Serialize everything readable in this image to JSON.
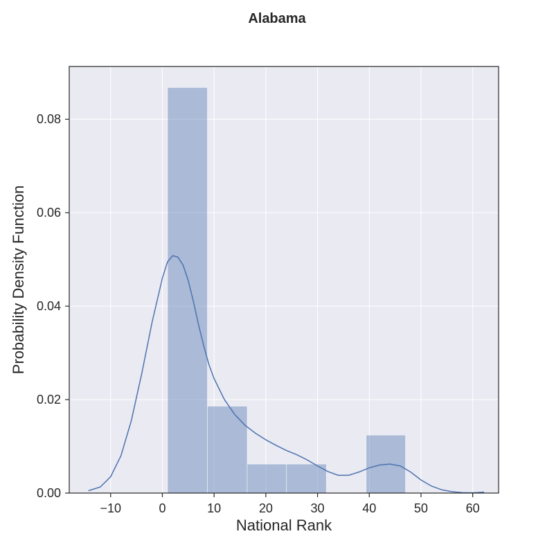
{
  "chart_data": {
    "type": "bar",
    "title": "Alabama",
    "xlabel": "National Rank",
    "ylabel": "Probability Density Function",
    "xlim": [
      -18,
      65
    ],
    "ylim": [
      0,
      0.0913
    ],
    "xticks": [
      -10,
      0,
      10,
      20,
      30,
      40,
      50,
      60
    ],
    "xtick_labels": [
      "−10",
      "0",
      "10",
      "20",
      "30",
      "40",
      "50",
      "60"
    ],
    "yticks": [
      0,
      0.02,
      0.04,
      0.06,
      0.08
    ],
    "ytick_labels": [
      "0.00",
      "0.02",
      "0.04",
      "0.06",
      "0.08"
    ],
    "grid": true,
    "histogram": {
      "bins": [
        {
          "x0": 1.0,
          "x1": 8.7,
          "density": 0.0868
        },
        {
          "x0": 8.7,
          "x1": 16.4,
          "density": 0.0186
        },
        {
          "x0": 16.4,
          "x1": 24.0,
          "density": 0.0062
        },
        {
          "x0": 24.0,
          "x1": 31.7,
          "density": 0.0062
        },
        {
          "x0": 31.7,
          "x1": 39.4,
          "density": 0.0
        },
        {
          "x0": 39.4,
          "x1": 47.0,
          "density": 0.0124
        }
      ],
      "color": "#4c72b0"
    },
    "kde": {
      "color": "#4c72b0",
      "x": [
        -14.3,
        -12,
        -10,
        -8,
        -6,
        -4,
        -2,
        0,
        1,
        2,
        3,
        4,
        5,
        6,
        7,
        8,
        9,
        10,
        12,
        14,
        16,
        18,
        20,
        22,
        24,
        26,
        28,
        30,
        32,
        34,
        36,
        38,
        40,
        42,
        44,
        46,
        48,
        50,
        52,
        54,
        56,
        58,
        60,
        62.2
      ],
      "y": [
        0.0005,
        0.0013,
        0.0035,
        0.008,
        0.0155,
        0.0255,
        0.0365,
        0.046,
        0.0495,
        0.0508,
        0.0505,
        0.0488,
        0.0455,
        0.041,
        0.036,
        0.0315,
        0.0275,
        0.0245,
        0.02,
        0.0168,
        0.0145,
        0.0128,
        0.0114,
        0.0102,
        0.0091,
        0.0082,
        0.0071,
        0.0058,
        0.0046,
        0.0038,
        0.0038,
        0.0045,
        0.0054,
        0.006,
        0.0062,
        0.0058,
        0.0045,
        0.0028,
        0.0015,
        0.0007,
        0.0003,
        0.0001,
        5e-05,
        0.0002
      ]
    }
  }
}
